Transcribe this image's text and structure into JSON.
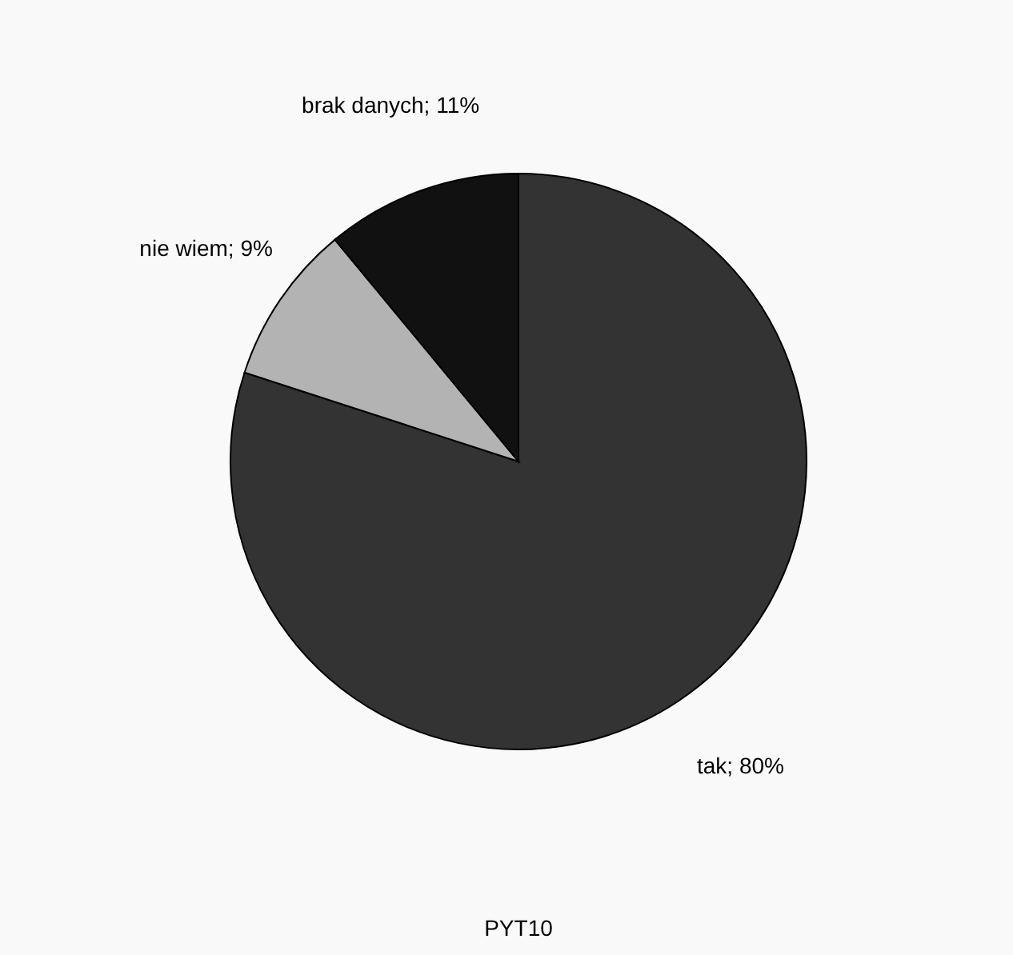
{
  "chart_data": {
    "type": "pie",
    "categories": [
      "tak",
      "nie wiem",
      "brak danych"
    ],
    "values": [
      80,
      9,
      11
    ],
    "colors": [
      "#333333",
      "#b3b3b3",
      "#111111"
    ],
    "value_labels": [
      "80%",
      "9%",
      "11%"
    ],
    "annotations": [
      "PYT10"
    ]
  }
}
